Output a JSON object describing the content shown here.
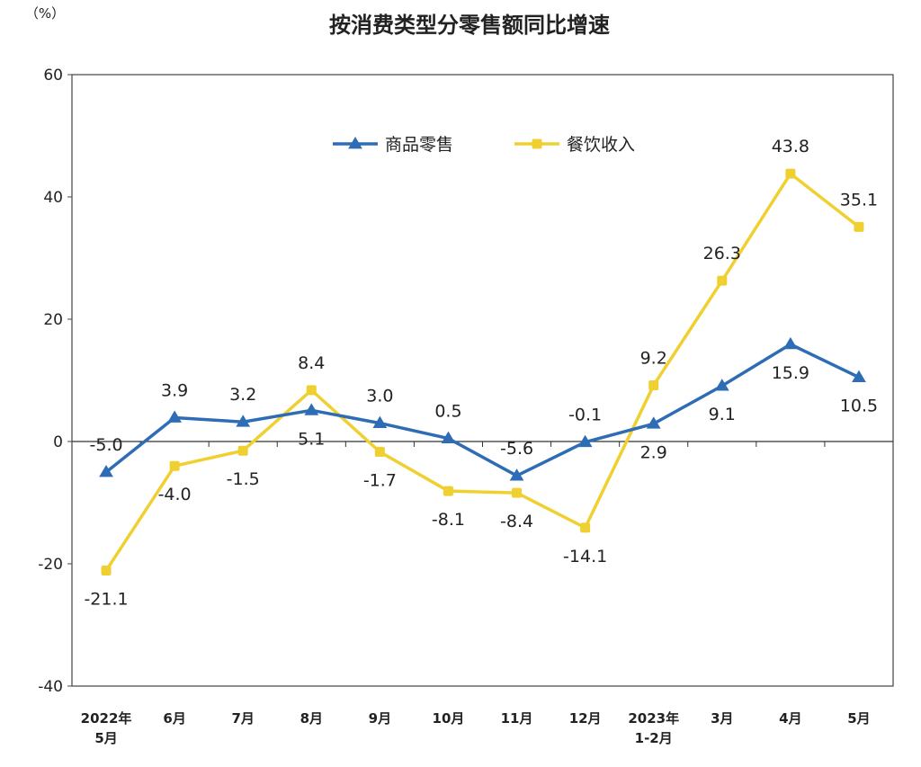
{
  "chart_data": {
    "type": "line",
    "title": "按消费类型分零售额同比增速",
    "unit": "（%）",
    "categories": [
      [
        "2022年",
        "5月"
      ],
      [
        "6月"
      ],
      [
        "7月"
      ],
      [
        "8月"
      ],
      [
        "9月"
      ],
      [
        "10月"
      ],
      [
        "11月"
      ],
      [
        "12月"
      ],
      [
        "2023年",
        "1-2月"
      ],
      [
        "3月"
      ],
      [
        "4月"
      ],
      [
        "5月"
      ]
    ],
    "ylim": [
      -40,
      60
    ],
    "yticks": [
      -40,
      -20,
      0,
      20,
      40,
      60
    ],
    "legend_position": "top-center",
    "grid": false,
    "series": [
      {
        "name": "商品零售",
        "color": "#2E6DB5",
        "marker": "triangle",
        "values": [
          -5.0,
          3.9,
          3.2,
          5.1,
          3.0,
          0.5,
          -5.6,
          -0.1,
          2.9,
          9.1,
          15.9,
          10.5
        ],
        "labels": [
          "-5.0",
          "3.9",
          "3.2",
          "5.1",
          "3.0",
          "0.5",
          "-5.6",
          "-0.1",
          "2.9",
          "9.1",
          "15.9",
          "10.5"
        ]
      },
      {
        "name": "餐饮收入",
        "color": "#F0D030",
        "marker": "square",
        "values": [
          -21.1,
          -4.0,
          -1.5,
          8.4,
          -1.7,
          -8.1,
          -8.4,
          -14.1,
          9.2,
          26.3,
          43.8,
          35.1
        ],
        "labels": [
          "-21.1",
          "-4.0",
          "-1.5",
          "8.4",
          "-1.7",
          "-8.1",
          "-8.4",
          "-14.1",
          "9.2",
          "26.3",
          "43.8",
          "35.1"
        ]
      }
    ]
  }
}
